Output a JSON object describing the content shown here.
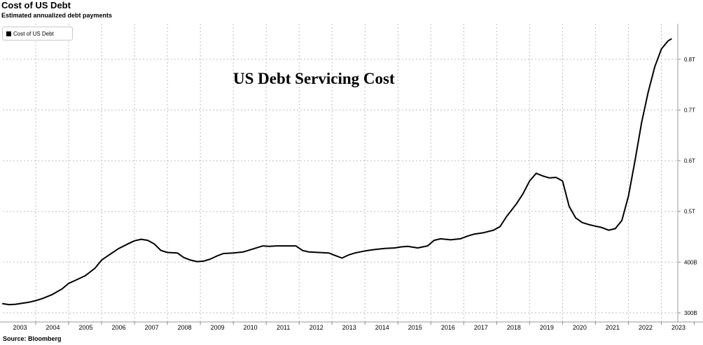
{
  "chart_data": {
    "type": "line",
    "title": "Cost of US Debt",
    "subtitle": "Estimated annualized debt payments",
    "annotation": "US Debt Servicing Cost",
    "source": "Source: Bloomberg",
    "legend": {
      "placement": "top-left",
      "entries": [
        "Cost of US Debt"
      ]
    },
    "grid": true,
    "x_ticks": [
      "2003",
      "2004",
      "2005",
      "2006",
      "2007",
      "2008",
      "2009",
      "2010",
      "2011",
      "2012",
      "2013",
      "2014",
      "2015",
      "2016",
      "2017",
      "2018",
      "2019",
      "2020",
      "2021",
      "2022",
      "2023"
    ],
    "y_ticks": [
      {
        "value": 300,
        "label": "300B"
      },
      {
        "value": 400,
        "label": "400B"
      },
      {
        "value": 500,
        "label": "0.5T"
      },
      {
        "value": 600,
        "label": "0.6T"
      },
      {
        "value": 700,
        "label": "0.7T"
      },
      {
        "value": 800,
        "label": "0.8T"
      }
    ],
    "xlim": [
      2003.0,
      2023.5
    ],
    "ylim": [
      282,
      870
    ],
    "y_unit": "billions USD",
    "series": [
      {
        "name": "Cost of US Debt",
        "color": "#000000",
        "x": [
          2003.0,
          2003.2,
          2003.4,
          2003.6,
          2003.8,
          2004.0,
          2004.2,
          2004.5,
          2004.8,
          2005.0,
          2005.2,
          2005.5,
          2005.8,
          2006.0,
          2006.2,
          2006.5,
          2006.8,
          2007.0,
          2007.2,
          2007.4,
          2007.6,
          2007.8,
          2008.0,
          2008.3,
          2008.5,
          2008.7,
          2008.9,
          2009.1,
          2009.3,
          2009.5,
          2009.7,
          2010.0,
          2010.3,
          2010.6,
          2010.9,
          2011.1,
          2011.3,
          2011.6,
          2011.9,
          2012.1,
          2012.3,
          2012.6,
          2012.9,
          2013.1,
          2013.3,
          2013.5,
          2013.7,
          2014.0,
          2014.3,
          2014.6,
          2014.9,
          2015.1,
          2015.3,
          2015.6,
          2015.9,
          2016.1,
          2016.3,
          2016.6,
          2016.9,
          2017.1,
          2017.3,
          2017.6,
          2017.9,
          2018.1,
          2018.3,
          2018.6,
          2018.8,
          2019.0,
          2019.2,
          2019.4,
          2019.6,
          2019.8,
          2020.0,
          2020.2,
          2020.4,
          2020.6,
          2020.8,
          2021.0,
          2021.2,
          2021.4,
          2021.6,
          2021.8,
          2022.0,
          2022.2,
          2022.4,
          2022.6,
          2022.8,
          2023.0,
          2023.2,
          2023.3
        ],
        "values": [
          318,
          316,
          317,
          319,
          321,
          324,
          328,
          336,
          347,
          358,
          364,
          373,
          388,
          404,
          413,
          426,
          436,
          442,
          445,
          443,
          436,
          423,
          419,
          418,
          409,
          404,
          401,
          402,
          406,
          412,
          417,
          418,
          420,
          426,
          432,
          431,
          432,
          432,
          432,
          423,
          420,
          419,
          418,
          413,
          408,
          414,
          418,
          422,
          425,
          427,
          428,
          430,
          431,
          428,
          432,
          443,
          446,
          444,
          446,
          451,
          455,
          458,
          463,
          470,
          490,
          515,
          535,
          560,
          575,
          570,
          566,
          567,
          560,
          510,
          487,
          478,
          474,
          471,
          468,
          463,
          466,
          482,
          530,
          600,
          675,
          735,
          785,
          820,
          836,
          840
        ]
      }
    ]
  }
}
